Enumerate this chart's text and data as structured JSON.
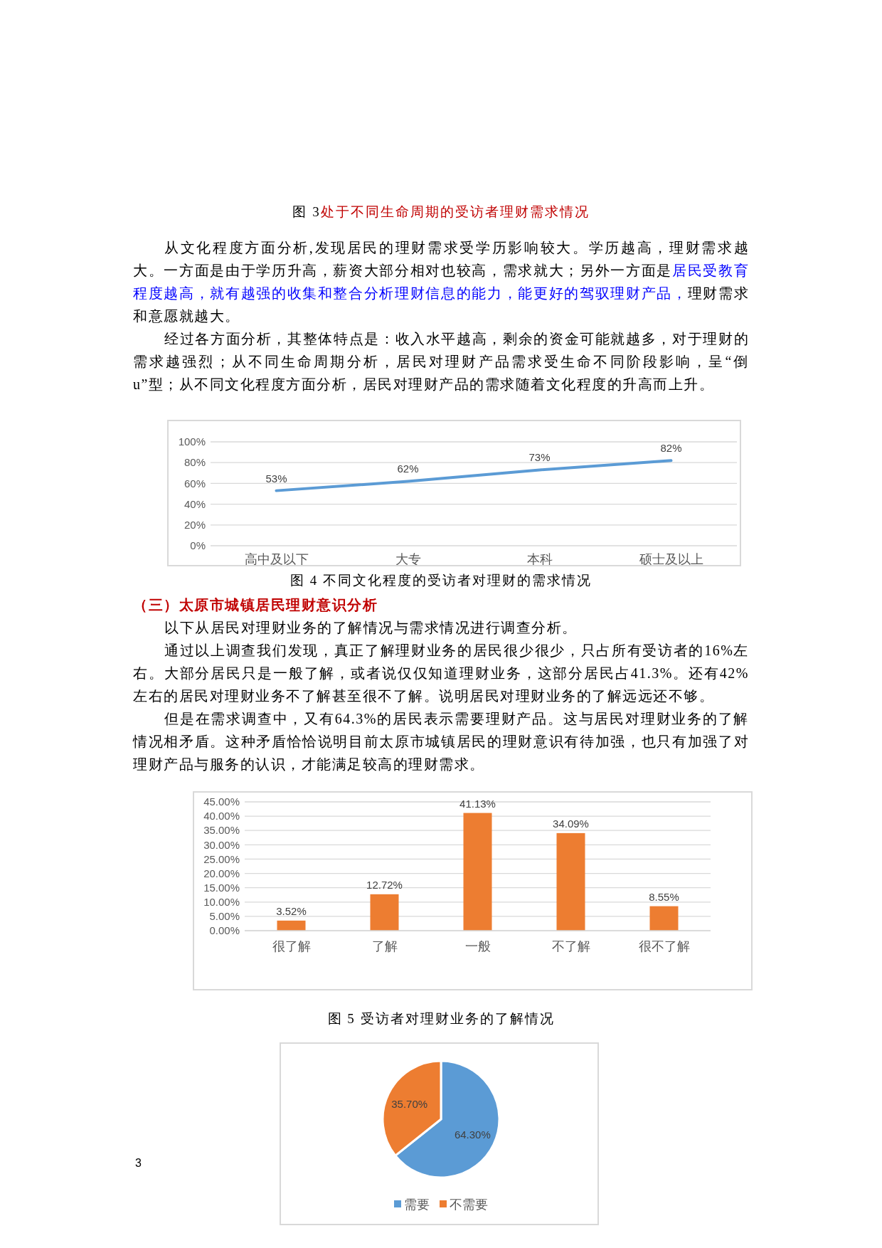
{
  "chart_data": [
    {
      "type": "line",
      "categories": [
        "高中及以下",
        "大专",
        "本科",
        "硕士及以上"
      ],
      "series": [
        {
          "color": "#5b9bd5",
          "values": [
            53,
            62,
            73,
            82
          ],
          "value_labels": [
            "53%",
            "62%",
            "73%",
            "82%"
          ]
        }
      ],
      "ylim": [
        0,
        100
      ],
      "yticks": [
        {
          "value": 0,
          "label": "0%"
        },
        {
          "value": 20,
          "label": "20%"
        },
        {
          "value": 40,
          "label": "40%"
        },
        {
          "value": 60,
          "label": "60%"
        },
        {
          "value": 80,
          "label": "80%"
        },
        {
          "value": 100,
          "label": "100%"
        }
      ],
      "grid": "y",
      "marker": "none",
      "annotations": [
        "图 3",
        "处于不同生命周期的受访者理财需求情况",
        "从文化程度方面分析,发现居民的理财需求受学历影响较大。学历越高，理财需求越大。一方面是由于学历升高，薪资大部分相对也较高，需求就大；另外一方面是",
        "居民受教育程度越高，就有越强的收集和整合分析理财信息的能力，能更好的驾驭理财产品，",
        "理财需求和意愿就越大。",
        "经过各方面分析，其整体特点是：收入水平越高，剩余的资金可能就越多，对于理财的需求越强烈；从不同生命周期分析，居民对理财产品需求受生命不同阶段影响，呈“倒u”型；从不同文化程度方面分析，居民对理财产品的需求随着文化程度的升高而上升。",
        "图 4 不同文化程度的受访者对理财的需求情况"
      ]
    },
    {
      "type": "bar",
      "categories": [
        "很了解",
        "了解",
        "一般",
        "不了解",
        "很不了解"
      ],
      "values": [
        3.52,
        12.72,
        41.13,
        34.09,
        8.55
      ],
      "color": "#ed7d31",
      "value_labels": [
        "3.52%",
        "12.72%",
        "41.13%",
        "34.09%",
        "8.55%"
      ],
      "ylim": [
        0,
        45
      ],
      "yticks": [
        {
          "value": 0,
          "label": "0.00%"
        },
        {
          "value": 5,
          "label": "5.00%"
        },
        {
          "value": 10,
          "label": "10.00%"
        },
        {
          "value": 15,
          "label": "15.00%"
        },
        {
          "value": 20,
          "label": "20.00%"
        },
        {
          "value": 25,
          "label": "25.00%"
        },
        {
          "value": 30,
          "label": "30.00%"
        },
        {
          "value": 35,
          "label": "35.00%"
        },
        {
          "value": 40,
          "label": "40.00%"
        },
        {
          "value": 45,
          "label": "45.00%"
        }
      ],
      "grid": "y",
      "annotations": [
        "（三）太原市城镇居民理财意识分析",
        "以下从居民对理财业务的了解情况与需求情况进行调查分析。",
        "通过以上调查我们发现，真正了解理财业务的居民很少很少，只占所有受访者的16%左右。大部分居民只是一般了解，或者说仅仅知道理财业务，这部分居民占41.3%。还有42%左右的居民对理财业务不了解甚至很不了解。说明居民对理财业务的了解远远还不够。",
        "但是在需求调查中，又有64.3%的居民表示需要理财产品。这与居民对理财业务的了解情况相矛盾。这种矛盾恰恰说明目前太原市城镇居民的理财意识有待加强，也只有加强了对理财产品与服务的认识，才能满足较高的理财需求。",
        "图 5 受访者对理财业务的了解情况"
      ]
    },
    {
      "type": "pie",
      "categories": [
        "需要",
        "不需要"
      ],
      "values": [
        64.3,
        35.7
      ],
      "colors": [
        "#5b9bd5",
        "#ed7d31"
      ],
      "value_labels": [
        "64.30%",
        "35.70%"
      ],
      "legend": "bottom",
      "annotations": [
        "3"
      ]
    }
  ]
}
